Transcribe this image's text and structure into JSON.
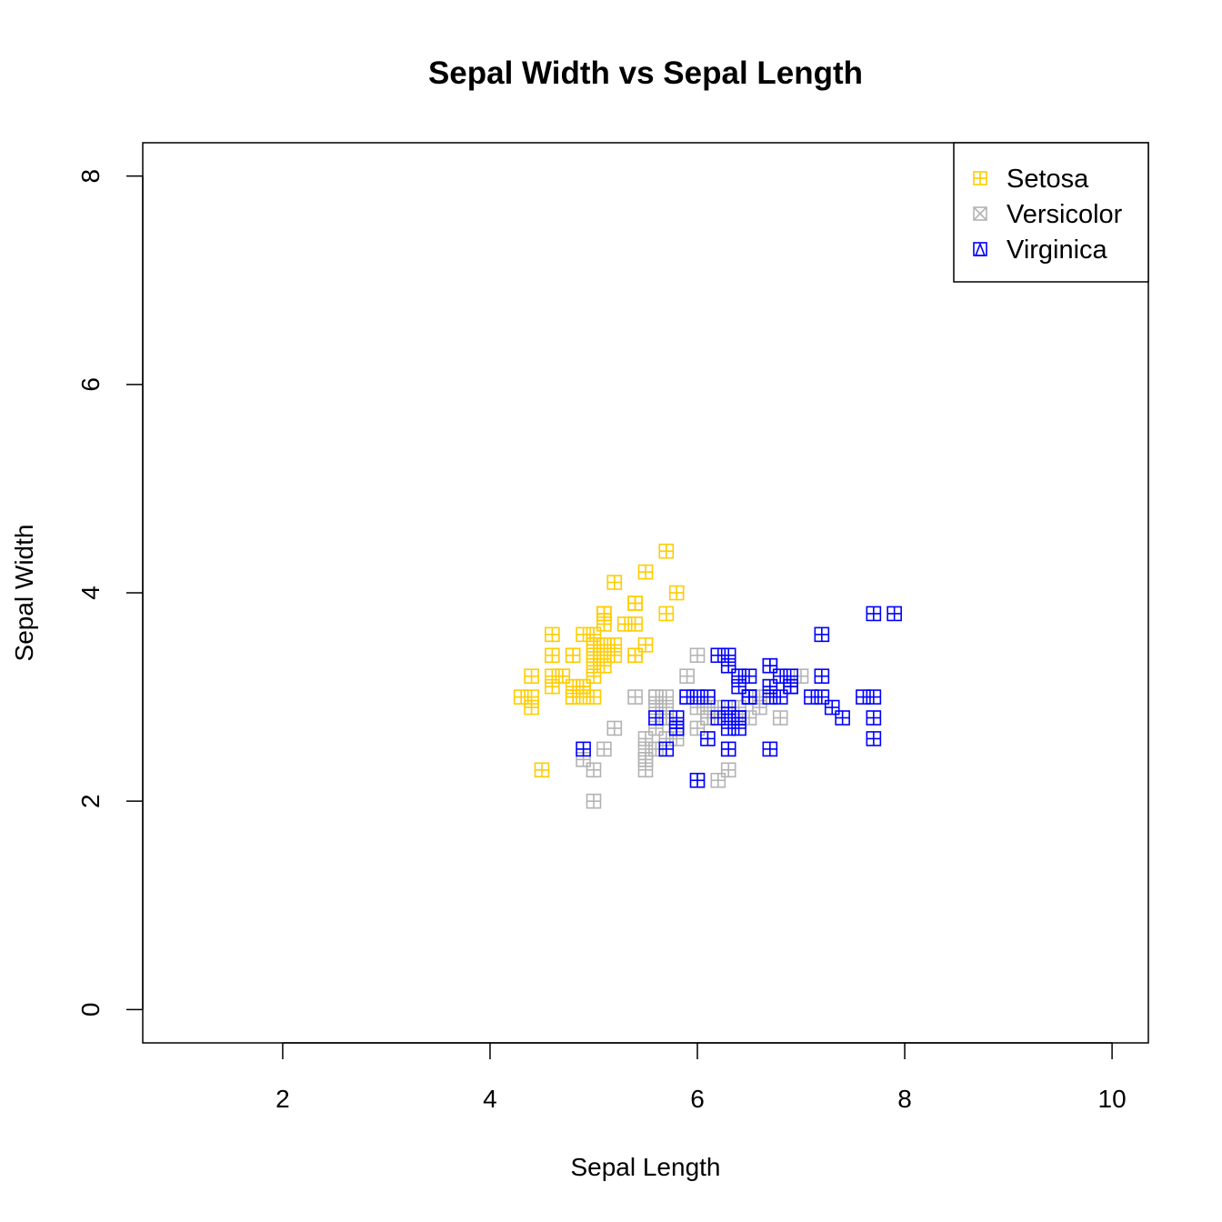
{
  "chart_data": {
    "type": "scatter",
    "title": "Sepal Width vs Sepal Length",
    "xlabel": "Sepal Length",
    "ylabel": "Sepal Width",
    "xlim": [
      0.65,
      10.35
    ],
    "ylim": [
      -0.32,
      8.32
    ],
    "xticks": [
      2,
      4,
      6,
      8,
      10
    ],
    "yticks": [
      0,
      2,
      4,
      6,
      8
    ],
    "legend_position": "top-right",
    "grid": false,
    "series": [
      {
        "name": "Setosa",
        "color": "#FFCC00",
        "legend_symbol": "square-plus",
        "points": [
          [
            5.1,
            3.5
          ],
          [
            4.9,
            3.0
          ],
          [
            4.7,
            3.2
          ],
          [
            4.6,
            3.1
          ],
          [
            5.0,
            3.6
          ],
          [
            5.4,
            3.9
          ],
          [
            4.6,
            3.4
          ],
          [
            5.0,
            3.4
          ],
          [
            4.4,
            2.9
          ],
          [
            4.9,
            3.1
          ],
          [
            5.4,
            3.7
          ],
          [
            4.8,
            3.4
          ],
          [
            4.8,
            3.0
          ],
          [
            4.3,
            3.0
          ],
          [
            5.8,
            4.0
          ],
          [
            5.7,
            4.4
          ],
          [
            5.4,
            3.9
          ],
          [
            5.1,
            3.5
          ],
          [
            5.7,
            3.8
          ],
          [
            5.1,
            3.8
          ],
          [
            5.4,
            3.4
          ],
          [
            5.1,
            3.7
          ],
          [
            4.6,
            3.6
          ],
          [
            5.1,
            3.3
          ],
          [
            4.8,
            3.4
          ],
          [
            5.0,
            3.0
          ],
          [
            5.0,
            3.4
          ],
          [
            5.2,
            3.5
          ],
          [
            5.2,
            3.4
          ],
          [
            4.7,
            3.2
          ],
          [
            4.8,
            3.1
          ],
          [
            5.4,
            3.4
          ],
          [
            5.2,
            4.1
          ],
          [
            5.5,
            4.2
          ],
          [
            4.9,
            3.1
          ],
          [
            5.0,
            3.2
          ],
          [
            5.5,
            3.5
          ],
          [
            4.9,
            3.6
          ],
          [
            4.4,
            3.0
          ],
          [
            5.1,
            3.4
          ],
          [
            5.0,
            3.5
          ],
          [
            4.5,
            2.3
          ],
          [
            4.4,
            3.2
          ],
          [
            5.0,
            3.5
          ],
          [
            5.1,
            3.8
          ],
          [
            4.8,
            3.0
          ],
          [
            5.1,
            3.8
          ],
          [
            4.6,
            3.2
          ],
          [
            5.3,
            3.7
          ],
          [
            5.0,
            3.3
          ]
        ]
      },
      {
        "name": "Versicolor",
        "color": "#B3B3B3",
        "legend_symbol": "square-cross",
        "points": [
          [
            7.0,
            3.2
          ],
          [
            6.4,
            3.2
          ],
          [
            6.9,
            3.1
          ],
          [
            5.5,
            2.3
          ],
          [
            6.5,
            2.8
          ],
          [
            5.7,
            2.8
          ],
          [
            6.3,
            3.3
          ],
          [
            4.9,
            2.4
          ],
          [
            6.6,
            2.9
          ],
          [
            5.2,
            2.7
          ],
          [
            5.0,
            2.0
          ],
          [
            5.9,
            3.0
          ],
          [
            6.0,
            2.2
          ],
          [
            6.1,
            2.9
          ],
          [
            5.6,
            2.9
          ],
          [
            6.7,
            3.1
          ],
          [
            5.6,
            3.0
          ],
          [
            5.8,
            2.7
          ],
          [
            6.2,
            2.2
          ],
          [
            5.6,
            2.5
          ],
          [
            5.9,
            3.2
          ],
          [
            6.1,
            2.8
          ],
          [
            6.3,
            2.5
          ],
          [
            6.1,
            2.8
          ],
          [
            6.4,
            2.9
          ],
          [
            6.6,
            3.0
          ],
          [
            6.8,
            2.8
          ],
          [
            6.7,
            3.0
          ],
          [
            6.0,
            2.9
          ],
          [
            5.7,
            2.6
          ],
          [
            5.5,
            2.4
          ],
          [
            5.5,
            2.4
          ],
          [
            5.8,
            2.7
          ],
          [
            6.0,
            2.7
          ],
          [
            5.4,
            3.0
          ],
          [
            6.0,
            3.4
          ],
          [
            6.7,
            3.1
          ],
          [
            6.3,
            2.3
          ],
          [
            5.6,
            3.0
          ],
          [
            5.5,
            2.5
          ],
          [
            5.5,
            2.6
          ],
          [
            6.1,
            3.0
          ],
          [
            5.8,
            2.6
          ],
          [
            5.0,
            2.3
          ],
          [
            5.6,
            2.7
          ],
          [
            5.7,
            3.0
          ],
          [
            5.7,
            2.9
          ],
          [
            6.2,
            2.9
          ],
          [
            5.1,
            2.5
          ],
          [
            5.7,
            2.8
          ]
        ]
      },
      {
        "name": "Virginica",
        "color": "#0000FF",
        "legend_symbol": "square-triangle",
        "points": [
          [
            6.3,
            3.3
          ],
          [
            5.8,
            2.7
          ],
          [
            7.1,
            3.0
          ],
          [
            6.3,
            2.9
          ],
          [
            6.5,
            3.0
          ],
          [
            7.6,
            3.0
          ],
          [
            4.9,
            2.5
          ],
          [
            7.3,
            2.9
          ],
          [
            6.7,
            2.5
          ],
          [
            7.2,
            3.6
          ],
          [
            6.5,
            3.2
          ],
          [
            6.4,
            2.7
          ],
          [
            6.8,
            3.0
          ],
          [
            5.7,
            2.5
          ],
          [
            5.8,
            2.8
          ],
          [
            6.4,
            3.2
          ],
          [
            6.5,
            3.0
          ],
          [
            7.7,
            3.8
          ],
          [
            7.7,
            2.6
          ],
          [
            6.0,
            2.2
          ],
          [
            6.9,
            3.2
          ],
          [
            5.6,
            2.8
          ],
          [
            7.7,
            2.8
          ],
          [
            6.3,
            2.7
          ],
          [
            6.7,
            3.3
          ],
          [
            7.2,
            3.2
          ],
          [
            6.2,
            2.8
          ],
          [
            6.1,
            3.0
          ],
          [
            6.4,
            2.8
          ],
          [
            7.2,
            3.0
          ],
          [
            7.4,
            2.8
          ],
          [
            7.9,
            3.8
          ],
          [
            6.4,
            2.8
          ],
          [
            6.3,
            2.8
          ],
          [
            6.1,
            2.6
          ],
          [
            7.7,
            3.0
          ],
          [
            6.3,
            3.4
          ],
          [
            6.4,
            3.1
          ],
          [
            6.0,
            3.0
          ],
          [
            6.9,
            3.1
          ],
          [
            6.7,
            3.1
          ],
          [
            6.9,
            3.1
          ],
          [
            5.8,
            2.7
          ],
          [
            6.8,
            3.2
          ],
          [
            6.7,
            3.3
          ],
          [
            6.7,
            3.0
          ],
          [
            6.3,
            2.5
          ],
          [
            6.5,
            3.0
          ],
          [
            6.2,
            3.4
          ],
          [
            5.9,
            3.0
          ]
        ]
      }
    ]
  }
}
